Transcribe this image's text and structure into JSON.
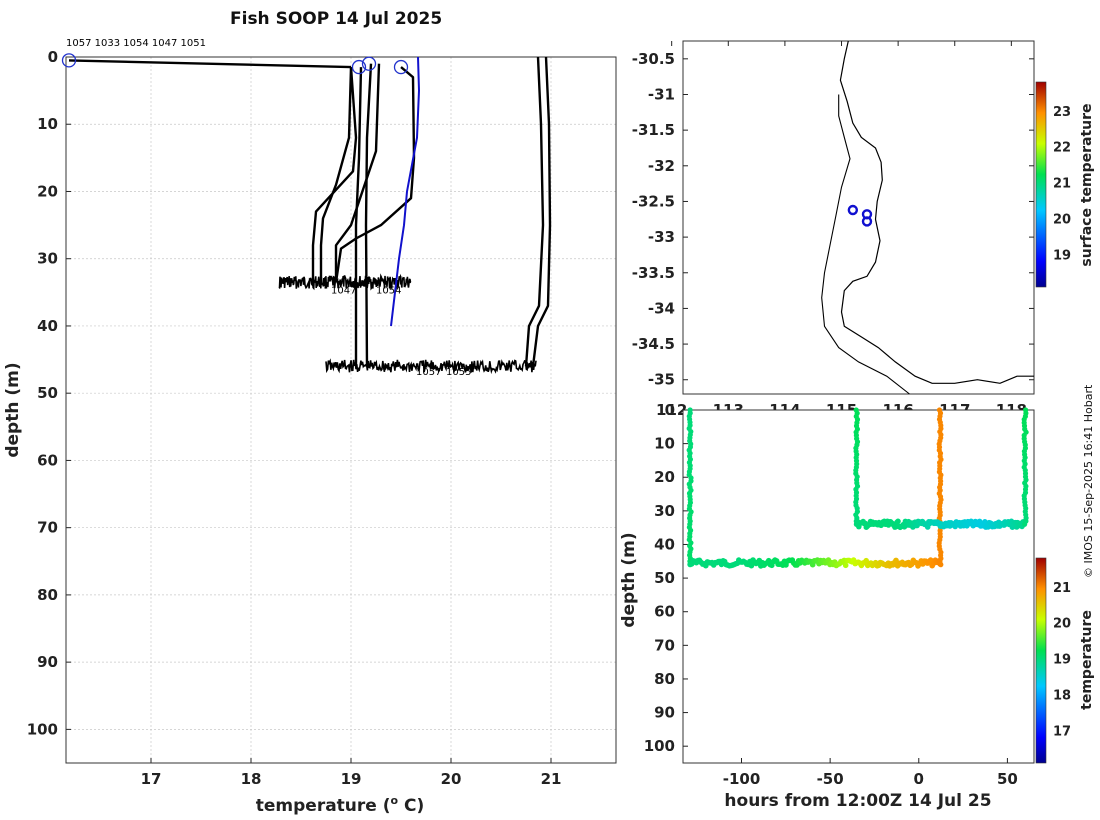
{
  "title": "Fish SOOP 14 Jul 2025",
  "credit": "© IMOS 15-Sep-2025 16:41 Hobart",
  "chart_data": [
    {
      "type": "line",
      "name": "profiles",
      "xlabel": "temperature (",
      "xlabel_unit": "o",
      "xlabel_tail": " C)",
      "ylabel": "depth (m)",
      "xlim": [
        16.15,
        21.65
      ],
      "ylim": [
        0,
        105
      ],
      "xticks": [
        "17",
        "18",
        "19",
        "20",
        "21"
      ],
      "yticks": [
        "0",
        "10",
        "20",
        "30",
        "40",
        "50",
        "60",
        "70",
        "80",
        "90",
        "100"
      ],
      "grid": true,
      "top_labels": "1057 1033 1054 1047 1051",
      "bottom_labels": [
        {
          "text": "1047",
          "x": 18.8,
          "y": 35.2
        },
        {
          "text": "1054",
          "x": 19.25,
          "y": 35.2
        },
        {
          "text": "1057",
          "x": 19.65,
          "y": 47.3
        },
        {
          "text": "1055",
          "x": 19.95,
          "y": 47.3
        }
      ],
      "start_markers": [
        {
          "x": 16.18,
          "y": 0.5
        },
        {
          "x": 19.08,
          "y": 1.5
        },
        {
          "x": 19.18,
          "y": 1.0
        },
        {
          "x": 19.5,
          "y": 1.5
        }
      ],
      "series": [
        {
          "name": "surface-transit",
          "color": "#000000",
          "x": [
            16.18,
            19.0
          ],
          "y": [
            0.5,
            1.5
          ]
        },
        {
          "name": "cast-a",
          "color": "#000000",
          "x": [
            19.0,
            19.05,
            19.02,
            18.65,
            18.62,
            18.62
          ],
          "y": [
            1.5,
            12,
            17,
            23,
            28,
            33.5
          ]
        },
        {
          "name": "cast-b",
          "color": "#000000",
          "x": [
            19.0,
            18.98,
            18.85,
            18.72,
            18.7,
            18.7
          ],
          "y": [
            1.5,
            12,
            19,
            24,
            28,
            33.5
          ]
        },
        {
          "name": "cast-c",
          "color": "#000000",
          "x": [
            19.1,
            19.08,
            19.05,
            19.05
          ],
          "y": [
            1.5,
            15,
            25,
            46
          ]
        },
        {
          "name": "cast-d",
          "color": "#000000",
          "x": [
            19.2,
            19.16,
            19.15,
            19.16
          ],
          "y": [
            1.0,
            12,
            25,
            46
          ]
        },
        {
          "name": "cast-e",
          "color": "#000000",
          "x": [
            19.28,
            19.25,
            19.0,
            18.85,
            18.85
          ],
          "y": [
            1.0,
            14,
            25,
            28,
            33.5
          ]
        },
        {
          "name": "cast-f",
          "color": "#000000",
          "x": [
            19.5,
            19.62,
            19.63,
            19.6,
            19.3,
            19.05,
            18.9,
            18.85
          ],
          "y": [
            1.5,
            3,
            15,
            21,
            25,
            27,
            28.5,
            33.5
          ]
        },
        {
          "name": "cast-g",
          "color": "#000000",
          "x": [
            20.87,
            20.9,
            20.92,
            20.88,
            20.78,
            20.75
          ],
          "y": [
            0,
            10,
            25,
            37,
            40,
            46
          ]
        },
        {
          "name": "cast-h",
          "color": "#000000",
          "x": [
            20.95,
            20.98,
            20.99,
            20.97,
            20.87,
            20.82
          ],
          "y": [
            0,
            10,
            25,
            37,
            40,
            46
          ]
        },
        {
          "name": "clim",
          "color": "#1111cc",
          "x": [
            19.67,
            19.68,
            19.66,
            19.56,
            19.53,
            19.48,
            19.4
          ],
          "y": [
            0,
            5,
            12,
            20,
            25,
            30,
            40
          ]
        }
      ],
      "bottom_bands": [
        {
          "y": 33.5,
          "x0": 18.28,
          "x1": 19.6
        },
        {
          "y": 46.0,
          "x0": 18.75,
          "x1": 20.85
        }
      ]
    },
    {
      "type": "scatter",
      "name": "map",
      "xlim": [
        112.2,
        118.4
      ],
      "ylim": [
        -35.2,
        -30.25
      ],
      "xticks": [
        "112",
        "113",
        "114",
        "115",
        "116",
        "117",
        "118"
      ],
      "yticks": [
        "-30.5",
        "-31",
        "-31.5",
        "-32",
        "-32.5",
        "-33",
        "-33.5",
        "-34",
        "-34.5",
        "-35"
      ],
      "colorbar_label": "surface temperature",
      "colorbar_ticks": [
        "19",
        "20",
        "21",
        "22",
        "23"
      ],
      "colorbar_range": [
        18.1,
        23.8
      ],
      "locations": [
        {
          "lon": 115.2,
          "lat": -32.62
        },
        {
          "lon": 115.45,
          "lat": -32.68
        },
        {
          "lon": 115.45,
          "lat": -32.78
        }
      ]
    },
    {
      "type": "scatter",
      "name": "depth-time",
      "xlabel": "hours from 12:00Z 14 Jul 25",
      "ylabel": "depth (m)",
      "xlim": [
        -133,
        65
      ],
      "ylim": [
        0,
        105
      ],
      "xticks": [
        "-100",
        "-50",
        "0",
        "50"
      ],
      "yticks": [
        "0",
        "10",
        "20",
        "30",
        "40",
        "50",
        "60",
        "70",
        "80",
        "90",
        "100"
      ],
      "colorbar_label": "temperature",
      "colorbar_ticks": [
        "17",
        "18",
        "19",
        "20",
        "21"
      ],
      "colorbar_range": [
        16.1,
        21.8
      ],
      "segments": [
        {
          "kind": "vertical",
          "x": -129,
          "d0": 0,
          "d1": 45,
          "t": [
            19.0,
            19.1
          ]
        },
        {
          "kind": "horizontal",
          "d": 45.5,
          "x0": -129,
          "x1": 12,
          "t": [
            19.0,
            19.0,
            19.2,
            19.9,
            20.6,
            21.0
          ]
        },
        {
          "kind": "vertical",
          "x": -35,
          "d0": 0,
          "d1": 34,
          "t": [
            19.2,
            19.0
          ]
        },
        {
          "kind": "vertical",
          "x": 12,
          "d0": 0,
          "d1": 46,
          "t": [
            21.0,
            21.0
          ]
        },
        {
          "kind": "horizontal",
          "d": 34,
          "x0": -35,
          "x1": 60,
          "t": [
            19.0,
            19.0,
            18.6,
            18.4,
            18.9
          ]
        },
        {
          "kind": "vertical",
          "x": 60,
          "d0": 0,
          "d1": 34,
          "t": [
            19.2,
            19.0
          ]
        }
      ]
    }
  ]
}
